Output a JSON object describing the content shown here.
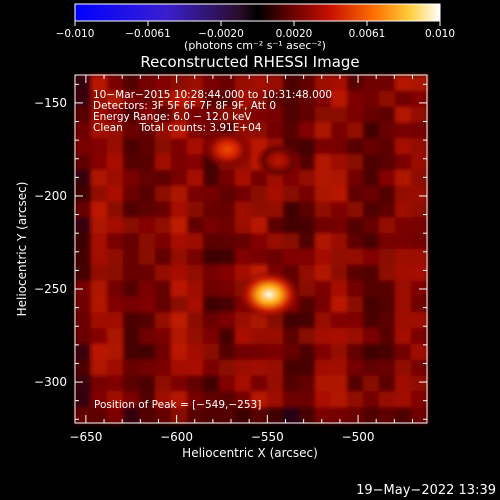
{
  "colorbar": {
    "ticks": [
      "−0.010",
      "−0.0061",
      "−0.0020",
      "0.0020",
      "0.0061",
      "0.010"
    ],
    "unit_label": "(photons cm⁻² s⁻¹ asec⁻²)",
    "range": [
      -0.01,
      0.01
    ]
  },
  "chart_data": {
    "type": "heatmap",
    "title": "Reconstructed RHESSI Image",
    "xlabel": "Heliocentric X (arcsec)",
    "ylabel": "Heliocentric Y (arcsec)",
    "xlim": [
      -656,
      -462
    ],
    "ylim": [
      -322,
      -135
    ],
    "xticks": [
      -650,
      -600,
      -550,
      -500
    ],
    "xtick_labels": [
      "−650",
      "−600",
      "−550",
      "−500"
    ],
    "yticks": [
      -150,
      -200,
      -250,
      -300
    ],
    "ytick_labels": [
      "−150",
      "−200",
      "−250",
      "−300"
    ],
    "info_lines": [
      "10−Mar−2015 10:28:44.000 to 10:31:48.000",
      "Detectors: 3F 5F 6F 7F 8F 9F, Att 0",
      "Energy Range: 6.0 − 12.0 keV",
      "Clean     Total counts: 3.91E+04"
    ],
    "peak_label": "Position of Peak = [−549,−253]",
    "peak": [
      -549,
      -253
    ],
    "sources": [
      {
        "x": -549,
        "y": -253,
        "intensity": 0.01
      },
      {
        "x": -572,
        "y": -175,
        "intensity": 0.0068
      },
      {
        "x": -544,
        "y": -181,
        "intensity": 0.005
      }
    ]
  },
  "footer": {
    "timestamp": "19−May−2022 13:39"
  }
}
